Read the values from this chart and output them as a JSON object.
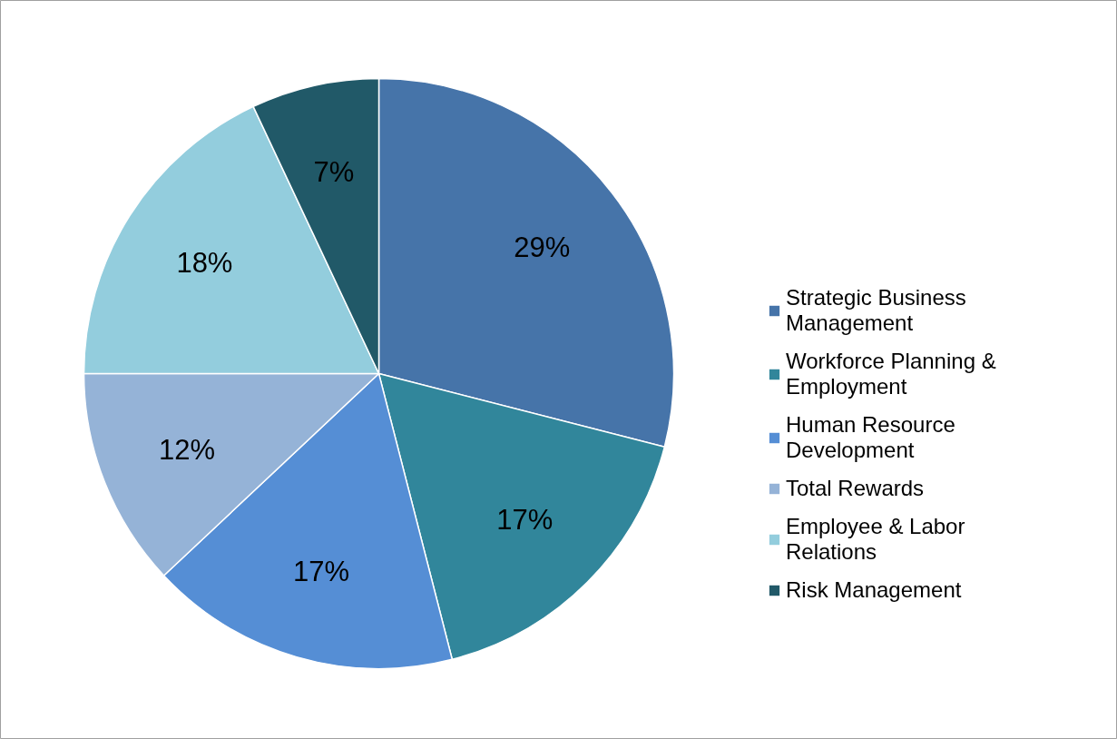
{
  "chart_data": {
    "type": "pie",
    "categories": [
      "Strategic Business Management",
      "Workforce Planning & Employment",
      "Human Resource Development",
      "Total Rewards",
      "Employee & Labor Relations",
      "Risk Management"
    ],
    "values": [
      29,
      17,
      17,
      12,
      18,
      7
    ],
    "colors": [
      "#4674a9",
      "#31869b",
      "#558ed5",
      "#95b3d7",
      "#93cddd",
      "#215968"
    ],
    "value_labels": [
      "29%",
      "17%",
      "17%",
      "12%",
      "18%",
      "7%"
    ],
    "legend": "right"
  }
}
